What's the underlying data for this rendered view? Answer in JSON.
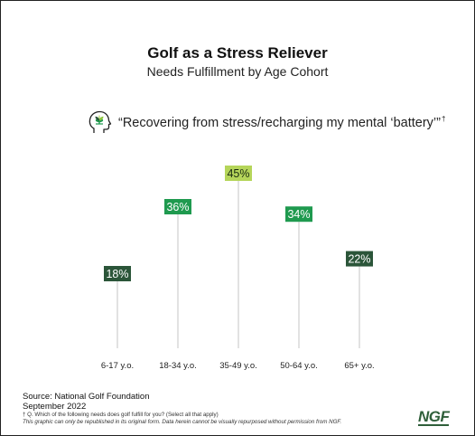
{
  "header": {
    "title": "Golf as a Stress Reliever",
    "subtitle": "Needs Fulfillment by Age Cohort"
  },
  "quote": {
    "text": "“Recovering from stress/recharging my mental ‘battery’”",
    "mark": "†",
    "icon": "head-with-plant-icon"
  },
  "chart_data": {
    "type": "bar",
    "categories": [
      "6-17 y.o.",
      "18-34 y.o.",
      "35-49 y.o.",
      "50-64 y.o.",
      "65+ y.o."
    ],
    "values": [
      18,
      36,
      45,
      34,
      22
    ],
    "labels": [
      "18%",
      "36%",
      "45%",
      "34%",
      "22%"
    ],
    "colors": [
      "#2b5539",
      "#1f9a4f",
      "#b5d55a",
      "#1f9a4f",
      "#2b5539"
    ],
    "label_text_colors": [
      "#ffffff",
      "#ffffff",
      "#1a2b10",
      "#ffffff",
      "#ffffff"
    ],
    "ylim": [
      0,
      45
    ],
    "title": "",
    "xlabel": "",
    "ylabel": ""
  },
  "footer": {
    "source": "Source: National Golf Foundation",
    "date": "September 2022",
    "question_note": "† Q. Which of the following needs does golf fulfill for you? (Select all that apply)",
    "republish_note": "This graphic can only be republished in its original form. Data herein cannot be visually repurposed without permission from NGF.",
    "logo": "NGF"
  }
}
